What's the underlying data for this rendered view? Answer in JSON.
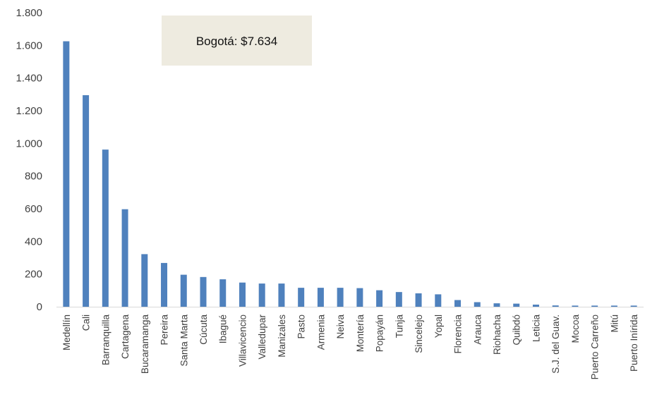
{
  "chart_data": {
    "type": "bar",
    "title": "",
    "xlabel": "",
    "ylabel": "",
    "ylim": [
      0,
      1800
    ],
    "yticks": [
      0,
      200,
      400,
      600,
      800,
      1000,
      1200,
      1400,
      1600,
      1800
    ],
    "ytick_labels": [
      "0",
      "200",
      "400",
      "600",
      "800",
      "1.000",
      "1.200",
      "1.400",
      "1.600",
      "1.800"
    ],
    "grid": false,
    "bar_color": "#4F81BD",
    "annotation": {
      "text": "Bogotá: $7.634",
      "background": "#EEEBE0"
    },
    "categories": [
      "Medellín",
      "Cali",
      "Barranquilla",
      "Cartagena",
      "Bucaramanga",
      "Pereira",
      "Santa Marta",
      "Cúcuta",
      "Ibagué",
      "Villavicencio",
      "Valledupar",
      "Manizales",
      "Pasto",
      "Armenia",
      "Neiva",
      "Montería",
      "Popayán",
      "Tunja",
      "Sincelejo",
      "Yopal",
      "Florencia",
      "Arauca",
      "Riohacha",
      "Quibdó",
      "Leticia",
      "S.J. del Guav.",
      "Mocoa",
      "Puerto Carreño",
      "Mitú",
      "Puerto Inírida"
    ],
    "values": [
      1625,
      1295,
      962,
      597,
      322,
      268,
      196,
      182,
      168,
      148,
      142,
      142,
      116,
      116,
      116,
      114,
      101,
      90,
      82,
      76,
      41,
      28,
      21,
      19,
      13,
      8,
      7,
      7,
      7,
      7
    ]
  }
}
